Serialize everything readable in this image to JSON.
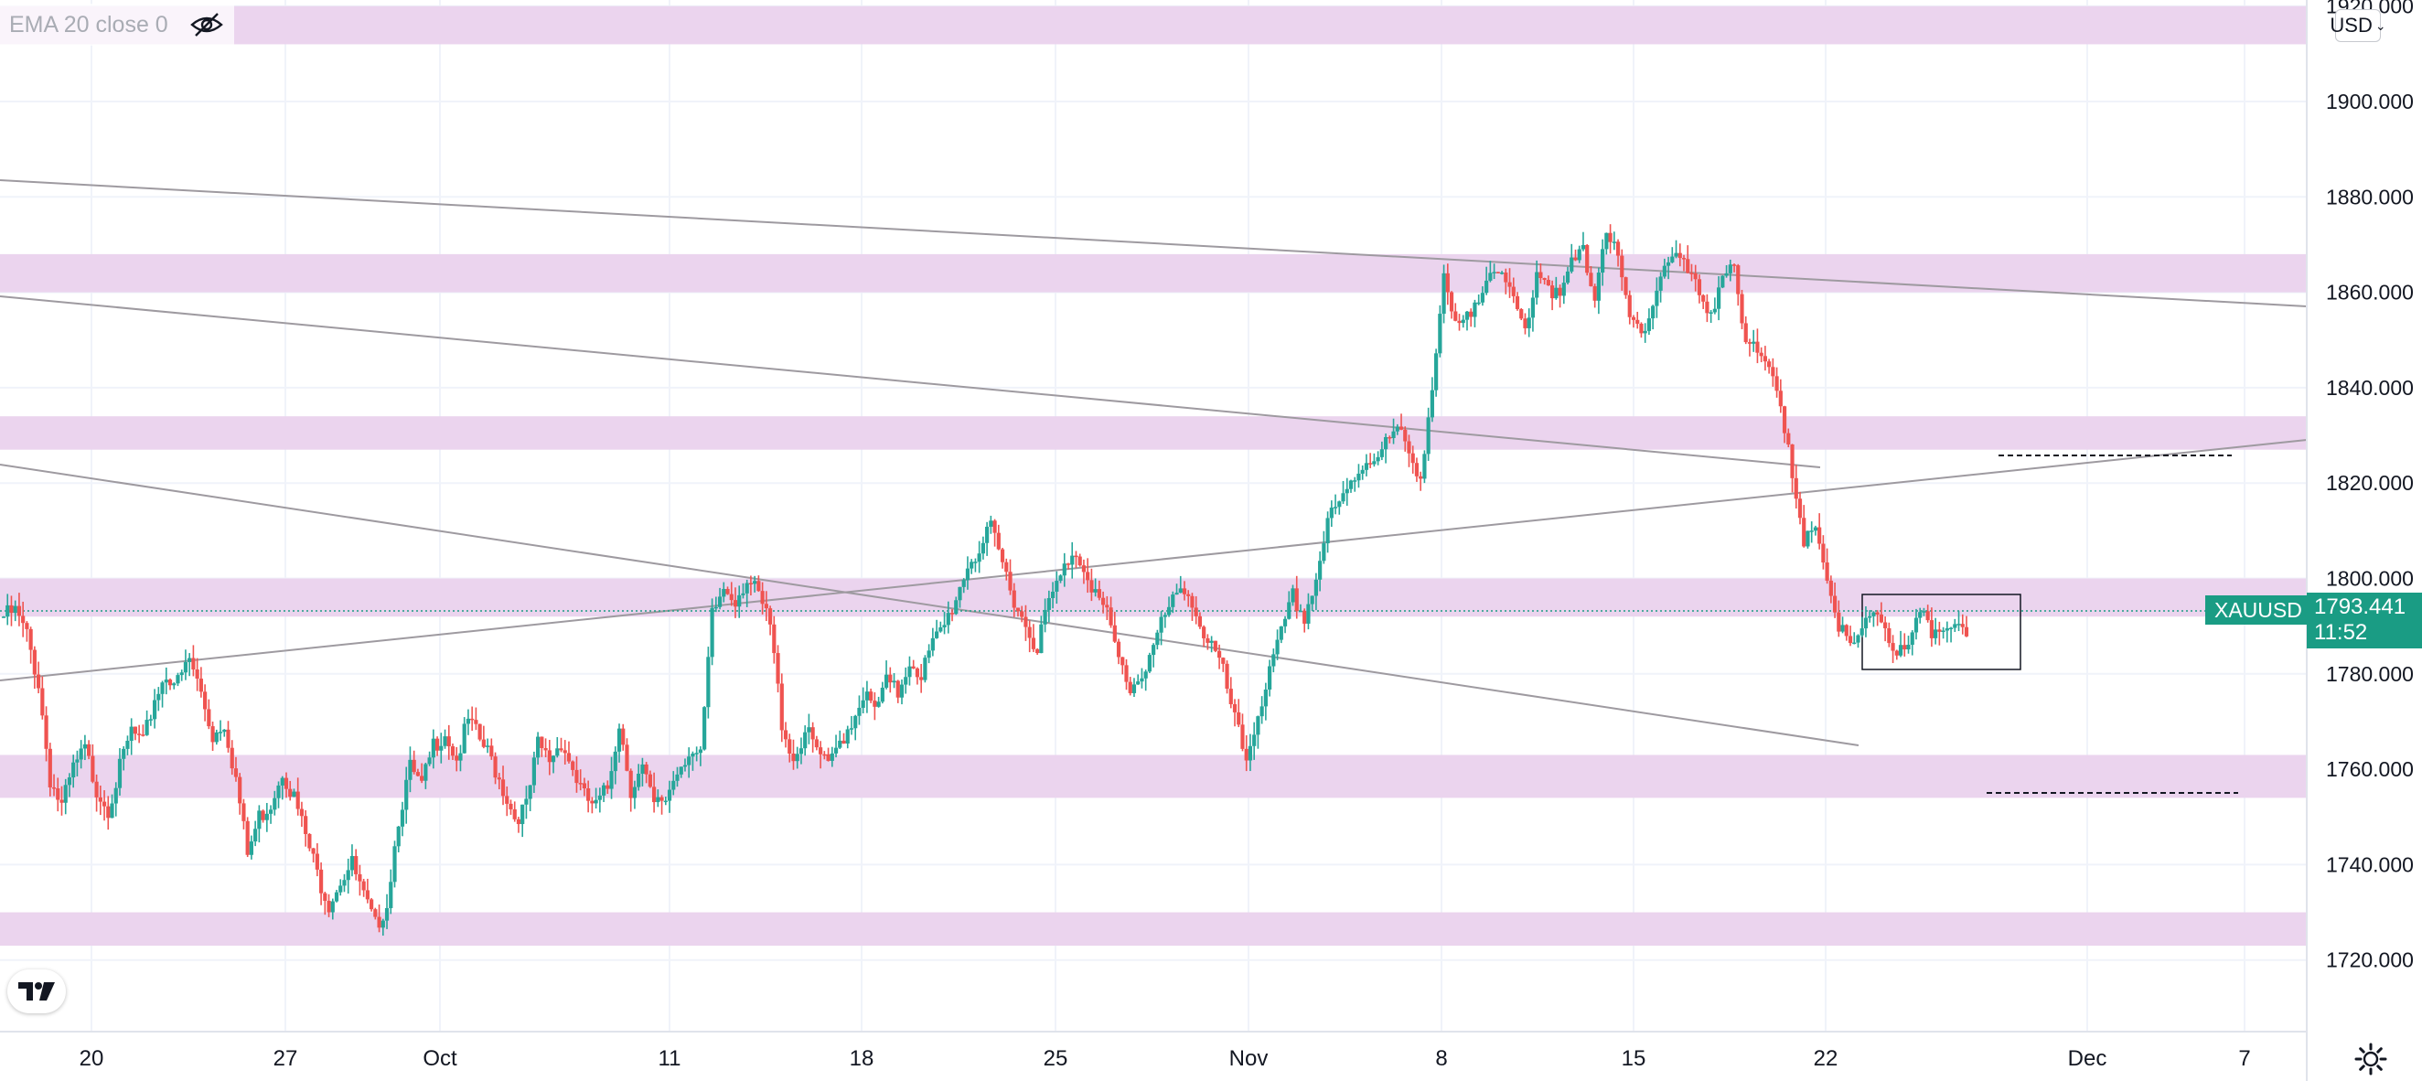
{
  "legend": {
    "label": "EMA 20 close 0",
    "icon": "eye-off-icon"
  },
  "currency": {
    "label": "USD",
    "icon": "chevron-down-icon"
  },
  "price_tag": {
    "symbol": "XAUUSD",
    "price": "1793.441",
    "countdown": "11:52"
  },
  "logo": {
    "icon": "tradingview-logo-icon"
  },
  "settings": {
    "icon": "gear-icon"
  },
  "colors": {
    "up": "#26a69a",
    "down": "#ef5350",
    "zone": "#ebd4ee",
    "trendline": "#9e9aa0",
    "grid": "#f0f3fa",
    "tag": "#1a9c84"
  },
  "chart_data": {
    "type": "candlestick",
    "symbol": "XAUUSD",
    "y_ticks": [
      "1920.000",
      "1900.000",
      "1880.000",
      "1860.000",
      "1840.000",
      "1820.000",
      "1800.000",
      "1780.000",
      "1760.000",
      "1740.000",
      "1720.000"
    ],
    "y_range": [
      1715,
      1922
    ],
    "x_ticks": [
      "20",
      "27",
      "Oct",
      "11",
      "18",
      "25",
      "Nov",
      "8",
      "15",
      "22",
      "Dec",
      "7"
    ],
    "last_price": 1793.441,
    "zones": [
      [
        1912,
        1920
      ],
      [
        1860,
        1868
      ],
      [
        1827,
        1834
      ],
      [
        1792,
        1800
      ],
      [
        1754,
        1763
      ],
      [
        1723,
        1730
      ]
    ],
    "close_path": [
      [
        0,
        1792
      ],
      [
        3,
        1793
      ],
      [
        6,
        1788
      ],
      [
        9,
        1778
      ],
      [
        12,
        1758
      ],
      [
        15,
        1752
      ],
      [
        18,
        1760
      ],
      [
        21,
        1764
      ],
      [
        24,
        1756
      ],
      [
        27,
        1752
      ],
      [
        30,
        1760
      ],
      [
        33,
        1768
      ],
      [
        36,
        1765
      ],
      [
        39,
        1775
      ],
      [
        42,
        1780
      ],
      [
        45,
        1778
      ],
      [
        48,
        1783
      ],
      [
        51,
        1776
      ],
      [
        54,
        1767
      ],
      [
        57,
        1770
      ],
      [
        60,
        1758
      ],
      [
        63,
        1742
      ],
      [
        66,
        1750
      ],
      [
        69,
        1753
      ],
      [
        72,
        1760
      ],
      [
        75,
        1754
      ],
      [
        78,
        1746
      ],
      [
        81,
        1738
      ],
      [
        84,
        1732
      ],
      [
        87,
        1737
      ],
      [
        90,
        1740
      ],
      [
        93,
        1733
      ],
      [
        96,
        1727
      ],
      [
        99,
        1732
      ],
      [
        102,
        1750
      ],
      [
        105,
        1760
      ],
      [
        108,
        1756
      ],
      [
        111,
        1765
      ],
      [
        114,
        1768
      ],
      [
        117,
        1762
      ],
      [
        120,
        1770
      ],
      [
        123,
        1766
      ],
      [
        126,
        1762
      ],
      [
        129,
        1756
      ],
      [
        132,
        1750
      ],
      [
        135,
        1752
      ],
      [
        138,
        1765
      ],
      [
        141,
        1762
      ],
      [
        144,
        1766
      ],
      [
        147,
        1760
      ],
      [
        150,
        1754
      ],
      [
        153,
        1752
      ],
      [
        156,
        1756
      ],
      [
        159,
        1770
      ],
      [
        162,
        1756
      ],
      [
        165,
        1760
      ],
      [
        168,
        1752
      ],
      [
        171,
        1754
      ],
      [
        174,
        1760
      ],
      [
        177,
        1764
      ],
      [
        180,
        1762
      ],
      [
        183,
        1792
      ],
      [
        186,
        1798
      ],
      [
        189,
        1796
      ],
      [
        192,
        1800
      ],
      [
        195,
        1796
      ],
      [
        198,
        1790
      ],
      [
        201,
        1770
      ],
      [
        204,
        1762
      ],
      [
        207,
        1768
      ],
      [
        210,
        1764
      ],
      [
        213,
        1760
      ],
      [
        216,
        1766
      ],
      [
        219,
        1770
      ],
      [
        222,
        1776
      ],
      [
        225,
        1772
      ],
      [
        228,
        1778
      ],
      [
        231,
        1776
      ],
      [
        234,
        1783
      ],
      [
        237,
        1780
      ],
      [
        240,
        1786
      ],
      [
        243,
        1790
      ],
      [
        246,
        1796
      ],
      [
        249,
        1803
      ],
      [
        252,
        1806
      ],
      [
        255,
        1810
      ],
      [
        258,
        1803
      ],
      [
        261,
        1796
      ],
      [
        264,
        1790
      ],
      [
        267,
        1786
      ],
      [
        270,
        1795
      ],
      [
        273,
        1800
      ],
      [
        276,
        1806
      ],
      [
        279,
        1803
      ],
      [
        282,
        1797
      ],
      [
        285,
        1792
      ],
      [
        288,
        1783
      ],
      [
        291,
        1777
      ],
      [
        294,
        1780
      ],
      [
        297,
        1786
      ],
      [
        300,
        1792
      ],
      [
        303,
        1796
      ],
      [
        306,
        1798
      ],
      [
        309,
        1790
      ],
      [
        312,
        1786
      ],
      [
        315,
        1780
      ],
      [
        318,
        1770
      ],
      [
        321,
        1762
      ],
      [
        324,
        1772
      ],
      [
        327,
        1780
      ],
      [
        330,
        1788
      ],
      [
        333,
        1796
      ],
      [
        336,
        1792
      ],
      [
        339,
        1800
      ],
      [
        342,
        1812
      ],
      [
        345,
        1815
      ],
      [
        348,
        1820
      ],
      [
        351,
        1824
      ],
      [
        354,
        1826
      ],
      [
        357,
        1828
      ],
      [
        360,
        1831
      ],
      [
        363,
        1826
      ],
      [
        366,
        1822
      ],
      [
        369,
        1840
      ],
      [
        372,
        1862
      ],
      [
        375,
        1852
      ],
      [
        378,
        1854
      ],
      [
        381,
        1860
      ],
      [
        384,
        1866
      ],
      [
        387,
        1862
      ],
      [
        390,
        1858
      ],
      [
        393,
        1852
      ],
      [
        396,
        1865
      ],
      [
        399,
        1862
      ],
      [
        402,
        1858
      ],
      [
        405,
        1866
      ],
      [
        408,
        1868
      ],
      [
        411,
        1860
      ],
      [
        414,
        1874
      ],
      [
        417,
        1866
      ],
      [
        420,
        1854
      ],
      [
        423,
        1852
      ],
      [
        426,
        1858
      ],
      [
        429,
        1866
      ],
      [
        432,
        1868
      ],
      [
        435,
        1864
      ],
      [
        438,
        1860
      ],
      [
        441,
        1856
      ],
      [
        444,
        1864
      ],
      [
        447,
        1864
      ],
      [
        450,
        1848
      ],
      [
        453,
        1848
      ],
      [
        456,
        1846
      ],
      [
        459,
        1838
      ],
      [
        462,
        1820
      ],
      [
        465,
        1806
      ],
      [
        468,
        1812
      ],
      [
        471,
        1800
      ],
      [
        474,
        1790
      ],
      [
        477,
        1785
      ],
      [
        480,
        1788
      ],
      [
        483,
        1794
      ],
      [
        486,
        1790
      ],
      [
        489,
        1784
      ],
      [
        492,
        1785
      ],
      [
        495,
        1792
      ],
      [
        498,
        1789
      ],
      [
        501,
        1790
      ],
      [
        504,
        1792
      ],
      [
        507,
        1786
      ]
    ]
  }
}
